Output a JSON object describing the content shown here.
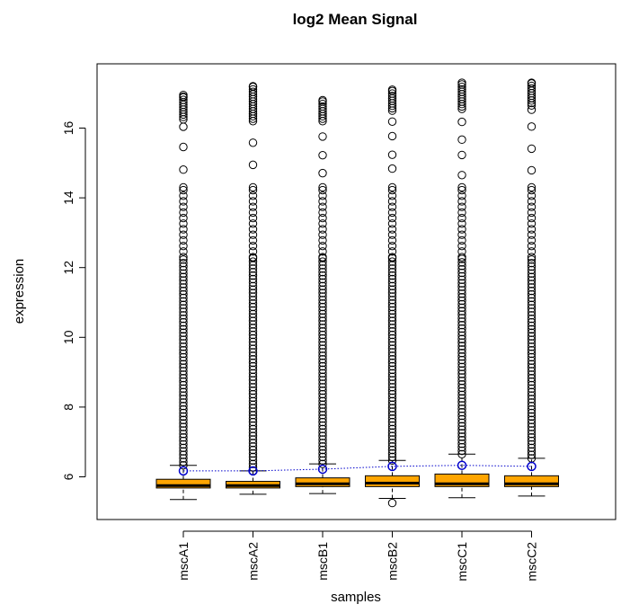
{
  "chart_data": {
    "type": "boxplot",
    "title": "log2 Mean Signal",
    "xlabel": "samples",
    "ylabel": "expression",
    "ylim": [
      4.9,
      17.6
    ],
    "yticks": [
      6,
      8,
      10,
      12,
      14,
      16
    ],
    "categories": [
      "mscA1",
      "mscA2",
      "mscB1",
      "mscB2",
      "mscC1",
      "mscC2"
    ],
    "boxes": [
      {
        "name": "mscA1",
        "whisker_low": 5.35,
        "q1": 5.68,
        "median": 5.75,
        "q3": 5.93,
        "whisker_high": 6.33,
        "outlier_min": 6.33,
        "outlier_max": 16.9,
        "low_outliers": [],
        "high_cluster": [
          16.25,
          16.95
        ]
      },
      {
        "name": "mscA2",
        "whisker_low": 5.5,
        "q1": 5.68,
        "median": 5.75,
        "q3": 5.87,
        "whisker_high": 6.17,
        "outlier_min": 6.17,
        "outlier_max": 17.2,
        "low_outliers": [],
        "high_cluster": [
          16.2,
          17.2
        ]
      },
      {
        "name": "mscB1",
        "whisker_low": 5.52,
        "q1": 5.72,
        "median": 5.8,
        "q3": 5.97,
        "whisker_high": 6.37,
        "outlier_min": 6.37,
        "outlier_max": 16.8,
        "low_outliers": [],
        "high_cluster": [
          16.2,
          16.8
        ]
      },
      {
        "name": "mscB2",
        "whisker_low": 5.38,
        "q1": 5.72,
        "median": 5.82,
        "q3": 6.03,
        "whisker_high": 6.47,
        "outlier_min": 6.47,
        "outlier_max": 17.1,
        "low_outliers": [
          5.25
        ],
        "high_cluster": [
          16.5,
          17.1
        ]
      },
      {
        "name": "mscC1",
        "whisker_low": 5.4,
        "q1": 5.72,
        "median": 5.8,
        "q3": 6.08,
        "whisker_high": 6.65,
        "outlier_min": 6.65,
        "outlier_max": 17.3,
        "low_outliers": [],
        "high_cluster": [
          16.55,
          17.3
        ]
      },
      {
        "name": "mscC2",
        "whisker_low": 5.45,
        "q1": 5.72,
        "median": 5.8,
        "q3": 6.03,
        "whisker_high": 6.53,
        "outlier_min": 6.53,
        "outlier_max": 17.3,
        "low_outliers": [],
        "high_cluster": [
          16.65,
          17.3
        ]
      }
    ],
    "mean_line": {
      "values": [
        6.17,
        6.17,
        6.22,
        6.3,
        6.33,
        6.3
      ]
    },
    "colors": {
      "box_fill": "#FFA500",
      "box_stroke": "#000000",
      "mean": "#0000CC",
      "outlier": "#000000"
    },
    "grid": false,
    "legend": "none"
  }
}
